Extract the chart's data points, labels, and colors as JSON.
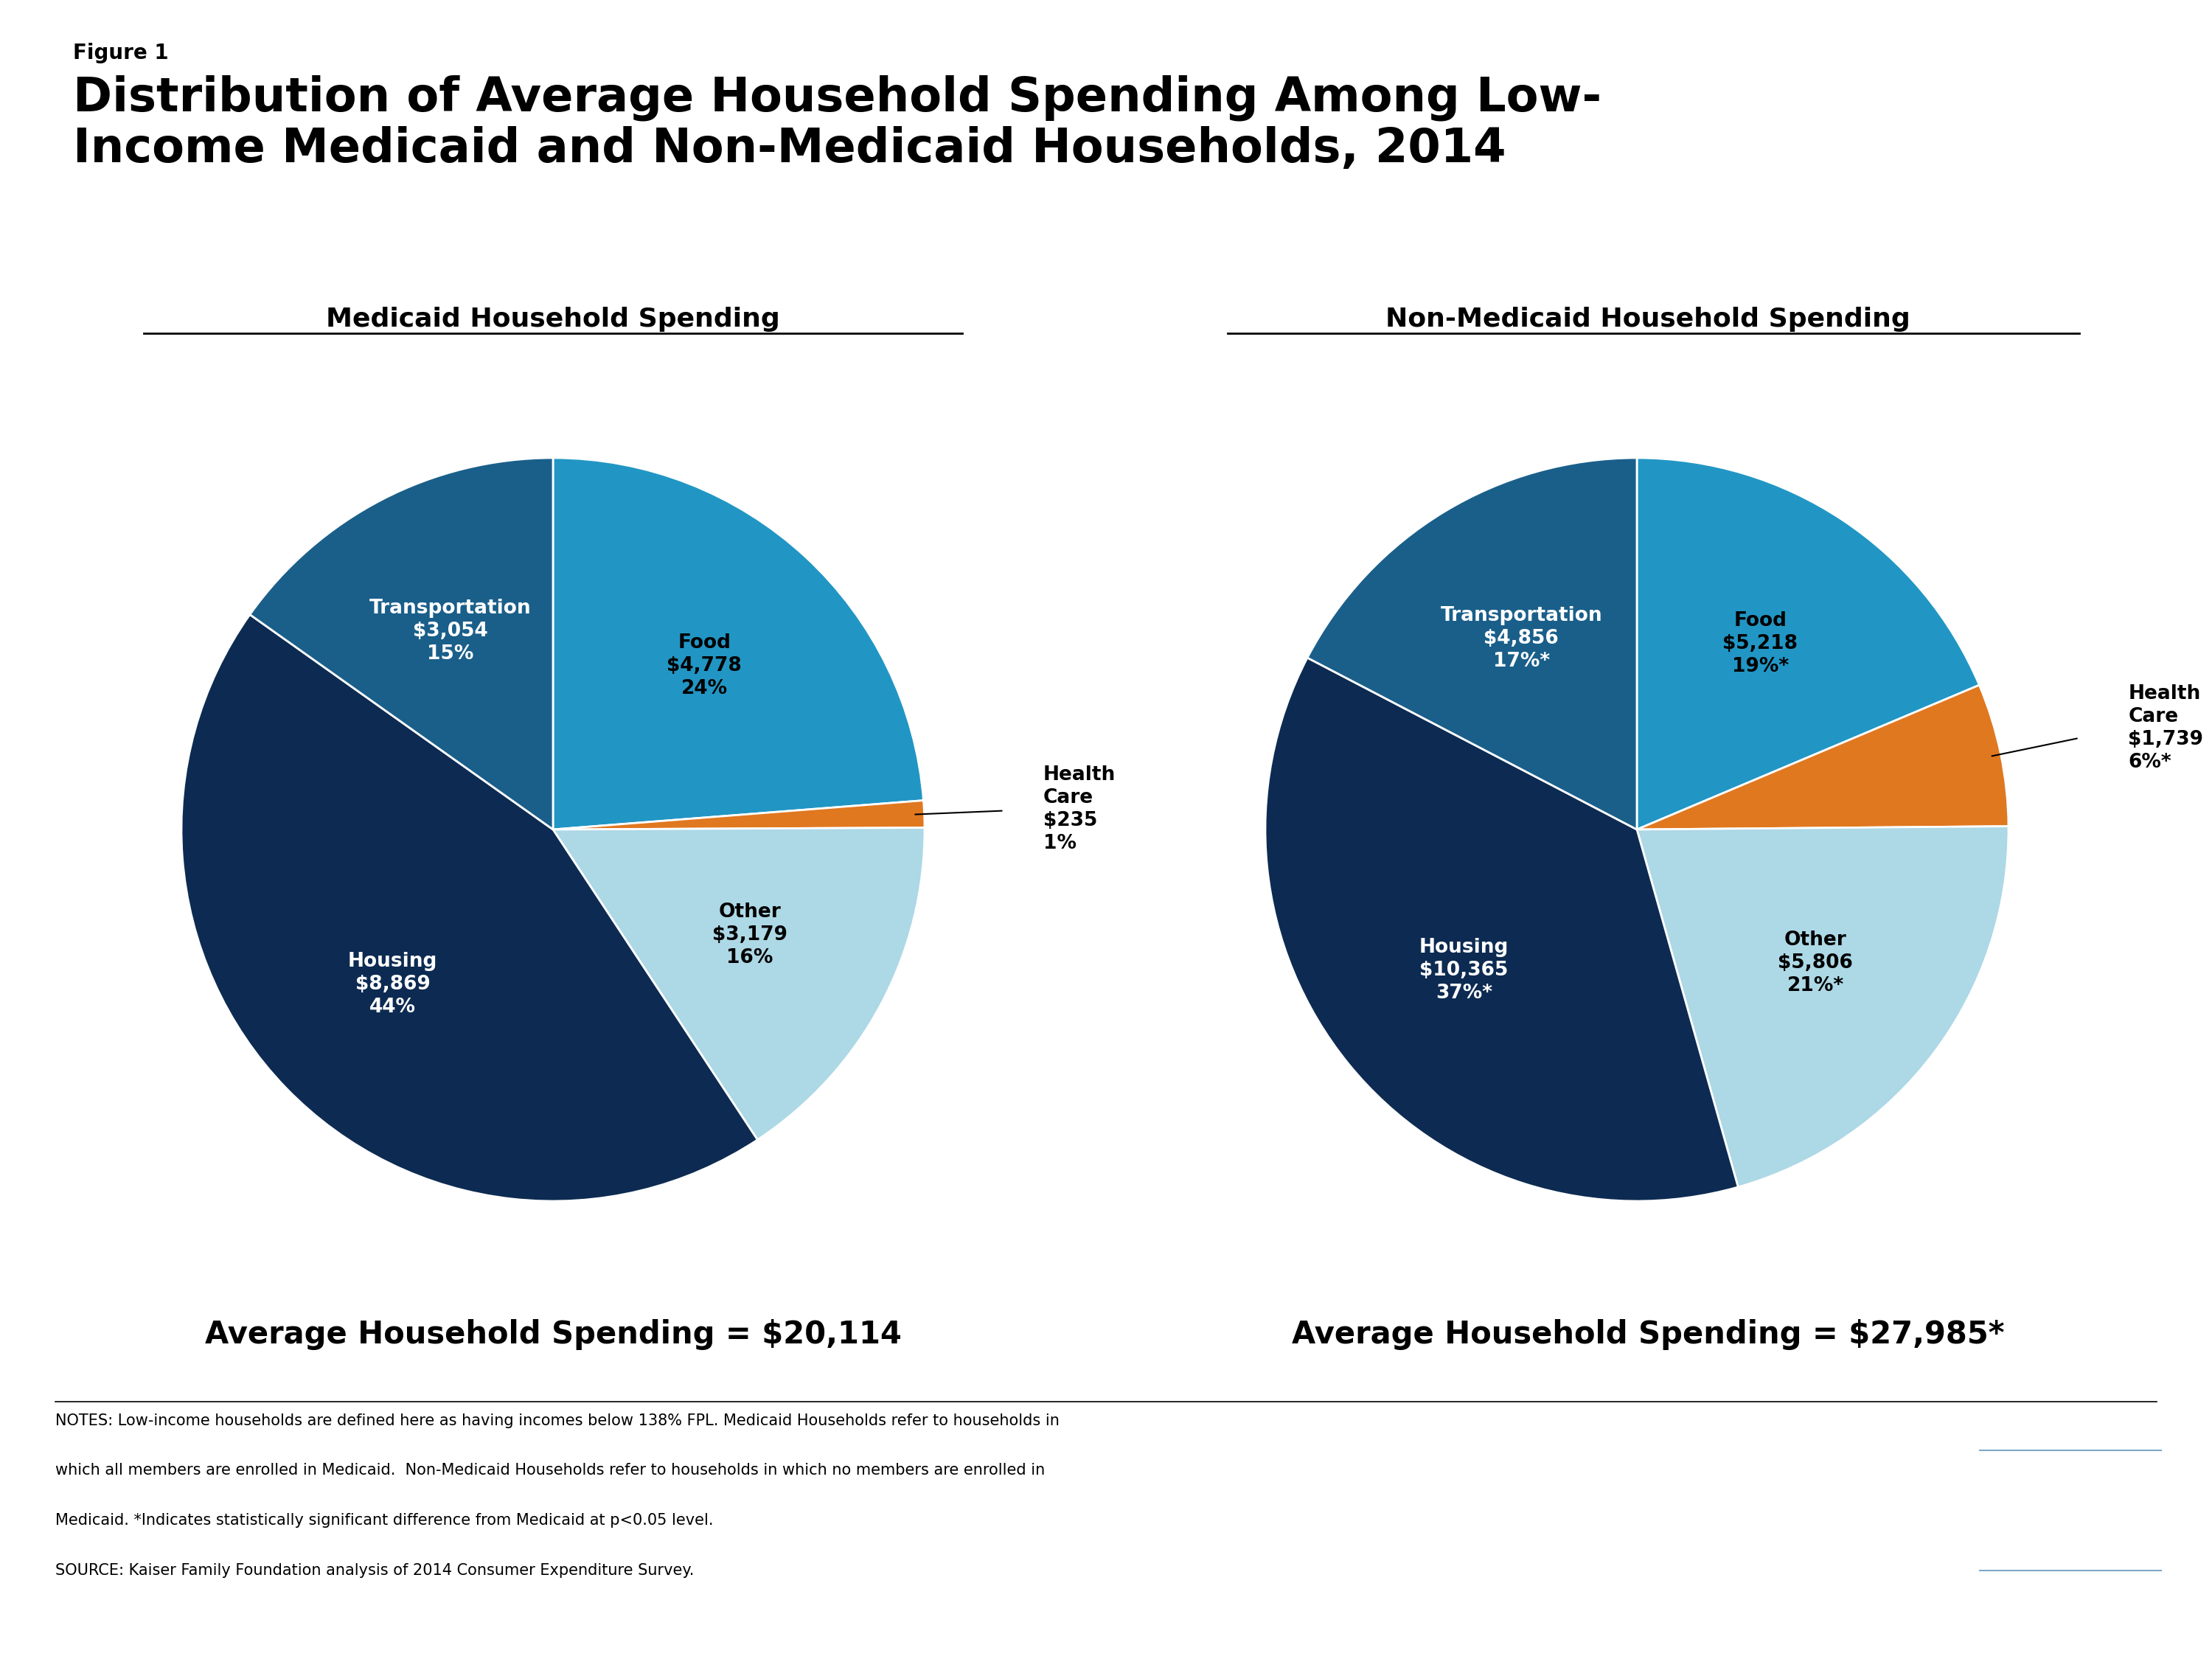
{
  "figure_label": "Figure 1",
  "title_line1": "Distribution of Average Household Spending Among Low-",
  "title_line2": "Income Medicaid and Non-Medicaid Households, 2014",
  "left_subtitle": "Medicaid Household Spending",
  "right_subtitle": "Non-Medicaid Household Spending",
  "left_avg": "Average Household Spending = $20,114",
  "right_avg": "Average Household Spending = $27,985*",
  "medicaid_slices": [
    {
      "label": "Food",
      "value": 4778,
      "pct": 24,
      "color": "#2196C4",
      "text_color": "#000000"
    },
    {
      "label": "Health\nCare",
      "value": 235,
      "pct": 1,
      "color": "#E07820",
      "text_color": "#000000"
    },
    {
      "label": "Other",
      "value": 3179,
      "pct": 16,
      "color": "#ADD8E6",
      "text_color": "#000000"
    },
    {
      "label": "Housing",
      "value": 8869,
      "pct": 44,
      "color": "#0D2B52",
      "text_color": "#FFFFFF"
    },
    {
      "label": "Transportation",
      "value": 3054,
      "pct": 15,
      "color": "#1A5F8A",
      "text_color": "#FFFFFF"
    }
  ],
  "nonmedicaid_slices": [
    {
      "label": "Food",
      "value": 5218,
      "pct": 19,
      "suffix": "*",
      "color": "#2196C4",
      "text_color": "#000000"
    },
    {
      "label": "Health\nCare",
      "value": 1739,
      "pct": 6,
      "suffix": "*",
      "color": "#E07820",
      "text_color": "#000000"
    },
    {
      "label": "Other",
      "value": 5806,
      "pct": 21,
      "suffix": "*",
      "color": "#ADD8E6",
      "text_color": "#000000"
    },
    {
      "label": "Housing",
      "value": 10365,
      "pct": 37,
      "suffix": "*",
      "color": "#0D2B52",
      "text_color": "#FFFFFF"
    },
    {
      "label": "Transportation",
      "value": 4856,
      "pct": 17,
      "suffix": "*",
      "color": "#1A5F8A",
      "text_color": "#FFFFFF"
    }
  ],
  "notes_lines": [
    "NOTES: Low-income households are defined here as having incomes below 138% FPL. Medicaid Households refer to households in",
    "which all members are enrolled in Medicaid.  Non-Medicaid Households refer to households in which no members are enrolled in",
    "Medicaid. *Indicates statistically significant difference from Medicaid at p<0.05 level.",
    "SOURCE: Kaiser Family Foundation analysis of 2014 Consumer Expenditure Survey."
  ],
  "kaiser_box_color": "#2A4A7F"
}
